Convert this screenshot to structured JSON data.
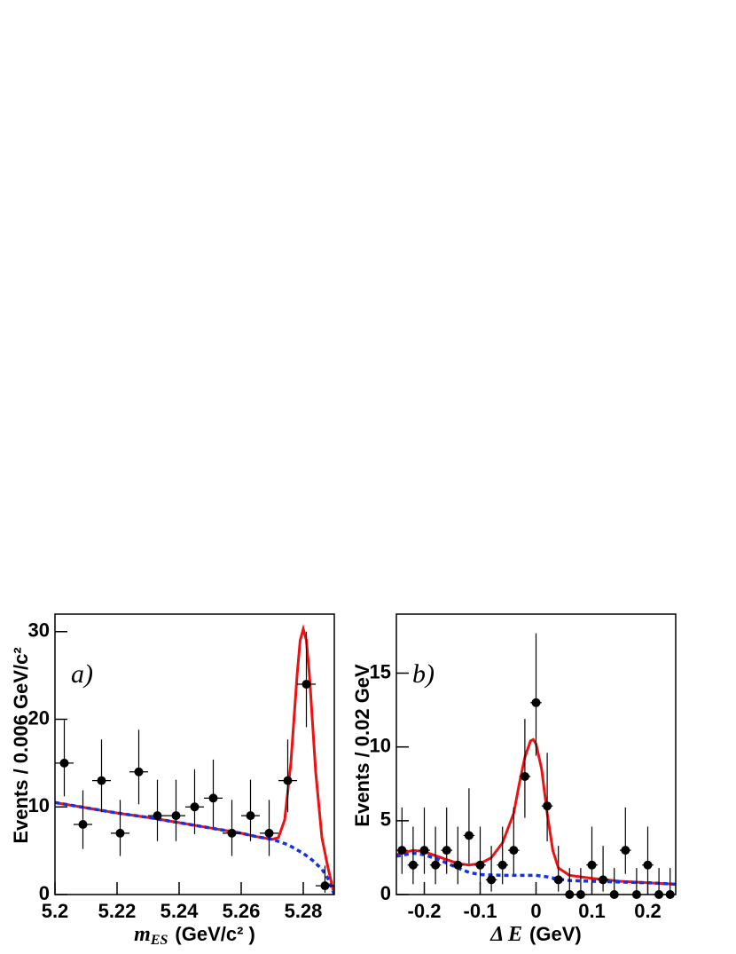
{
  "chart_data": [
    {
      "type": "errorbar",
      "panel_label": "a)",
      "ylabel": "Events / 0.006 GeV/c²",
      "xlabel": {
        "symbol": "m",
        "subscript": "ES",
        "unit": "(GeV/c² )"
      },
      "xlim": [
        5.2,
        5.29
      ],
      "ylim": [
        0,
        32
      ],
      "xticks": [
        5.2,
        5.22,
        5.24,
        5.26,
        5.28
      ],
      "yticks": [
        0,
        10,
        20,
        30
      ],
      "marker_color": "#000000",
      "x": [
        5.203,
        5.209,
        5.215,
        5.221,
        5.227,
        5.233,
        5.239,
        5.245,
        5.251,
        5.257,
        5.263,
        5.269,
        5.275,
        5.281,
        5.287
      ],
      "values": [
        15,
        8,
        13,
        7,
        14,
        9,
        9,
        10,
        11,
        7,
        9,
        7,
        13,
        24,
        1
      ],
      "yerr_low": [
        3.8,
        2.8,
        3.6,
        2.6,
        3.7,
        2.9,
        2.9,
        3.1,
        3.3,
        2.6,
        2.9,
        2.6,
        3.6,
        4.9,
        0.8
      ],
      "yerr_high": [
        4.9,
        3.9,
        4.7,
        3.8,
        4.8,
        4.1,
        4.1,
        4.3,
        4.4,
        3.8,
        4.1,
        3.8,
        4.7,
        6.0,
        2.3
      ],
      "curves": [
        {
          "color": "#ee1111",
          "dash": false,
          "x": [
            5.2,
            5.21,
            5.22,
            5.23,
            5.24,
            5.25,
            5.26,
            5.265,
            5.27,
            5.272,
            5.274,
            5.276,
            5.278,
            5.279,
            5.28,
            5.281,
            5.282,
            5.284,
            5.286,
            5.288,
            5.289,
            5.29
          ],
          "values": [
            10.5,
            9.9,
            9.3,
            8.8,
            8.2,
            7.6,
            7.0,
            6.6,
            6.3,
            6.5,
            8.5,
            15,
            25,
            29,
            30.3,
            29,
            25,
            14,
            6.5,
            3,
            1.5,
            0
          ]
        },
        {
          "color": "#1133ee",
          "dash": true,
          "x": [
            5.2,
            5.21,
            5.22,
            5.23,
            5.24,
            5.25,
            5.26,
            5.265,
            5.27,
            5.275,
            5.28,
            5.283,
            5.286,
            5.288,
            5.29
          ],
          "values": [
            10.5,
            9.9,
            9.3,
            8.8,
            8.2,
            7.6,
            7.0,
            6.6,
            6.3,
            5.7,
            4.7,
            3.9,
            2.9,
            1.8,
            0
          ]
        }
      ]
    },
    {
      "type": "errorbar",
      "panel_label": "b)",
      "ylabel": "Events / 0.02 GeV",
      "xlabel": {
        "symbol": "Δ E",
        "unit": "(GeV)"
      },
      "xlim": [
        -0.25,
        0.25
      ],
      "ylim": [
        0,
        19
      ],
      "xticks": [
        -0.2,
        -0.1,
        0,
        0.1,
        0.2
      ],
      "yticks": [
        0,
        5,
        10,
        15
      ],
      "marker_color": "#000000",
      "x": [
        -0.24,
        -0.22,
        -0.2,
        -0.18,
        -0.16,
        -0.14,
        -0.12,
        -0.1,
        -0.08,
        -0.06,
        -0.04,
        -0.02,
        0,
        0.02,
        0.04,
        0.06,
        0.08,
        0.1,
        0.12,
        0.14,
        0.16,
        0.18,
        0.2,
        0.22,
        0.24
      ],
      "values": [
        3,
        2,
        3,
        2,
        3,
        2,
        4,
        2,
        1,
        2,
        3,
        8,
        13,
        6,
        1,
        0,
        0,
        2,
        1,
        0,
        3,
        0,
        2,
        0,
        0
      ],
      "yerr_low": [
        1.6,
        1.3,
        1.6,
        1.3,
        1.6,
        1.3,
        1.9,
        1.3,
        0.8,
        1.3,
        1.6,
        2.8,
        3.6,
        2.4,
        0.8,
        0,
        0,
        1.3,
        0.8,
        0,
        1.6,
        0,
        1.3,
        0,
        0
      ],
      "yerr_high": [
        2.9,
        2.6,
        2.9,
        2.6,
        2.9,
        2.6,
        3.2,
        2.6,
        2.3,
        2.6,
        2.9,
        3.9,
        4.7,
        3.6,
        2.3,
        1.8,
        1.8,
        2.6,
        2.3,
        1.8,
        2.9,
        1.8,
        2.6,
        1.8,
        1.8
      ],
      "curves": [
        {
          "color": "#ee1111",
          "dash": false,
          "x": [
            -0.25,
            -0.22,
            -0.2,
            -0.17,
            -0.14,
            -0.12,
            -0.1,
            -0.08,
            -0.06,
            -0.04,
            -0.03,
            -0.02,
            -0.01,
            -0.005,
            0,
            0.01,
            0.02,
            0.03,
            0.04,
            0.06,
            0.1,
            0.15,
            0.2,
            0.25
          ],
          "values": [
            2.7,
            3.0,
            2.9,
            2.5,
            2.1,
            2.0,
            2.1,
            2.5,
            3.5,
            5.5,
            7.5,
            9.3,
            10.4,
            10.5,
            10.2,
            8.5,
            5.5,
            3.0,
            1.8,
            1.3,
            1.1,
            0.9,
            0.8,
            0.7
          ]
        },
        {
          "color": "#1133ee",
          "dash": true,
          "x": [
            -0.25,
            -0.22,
            -0.2,
            -0.17,
            -0.14,
            -0.12,
            -0.1,
            -0.06,
            -0.02,
            0,
            0.02,
            0.04,
            0.06,
            0.1,
            0.15,
            0.2,
            0.25
          ],
          "values": [
            2.6,
            2.8,
            2.7,
            2.3,
            1.8,
            1.5,
            1.35,
            1.3,
            1.3,
            1.3,
            1.2,
            1.05,
            0.95,
            0.9,
            0.85,
            0.8,
            0.7
          ]
        }
      ]
    }
  ]
}
